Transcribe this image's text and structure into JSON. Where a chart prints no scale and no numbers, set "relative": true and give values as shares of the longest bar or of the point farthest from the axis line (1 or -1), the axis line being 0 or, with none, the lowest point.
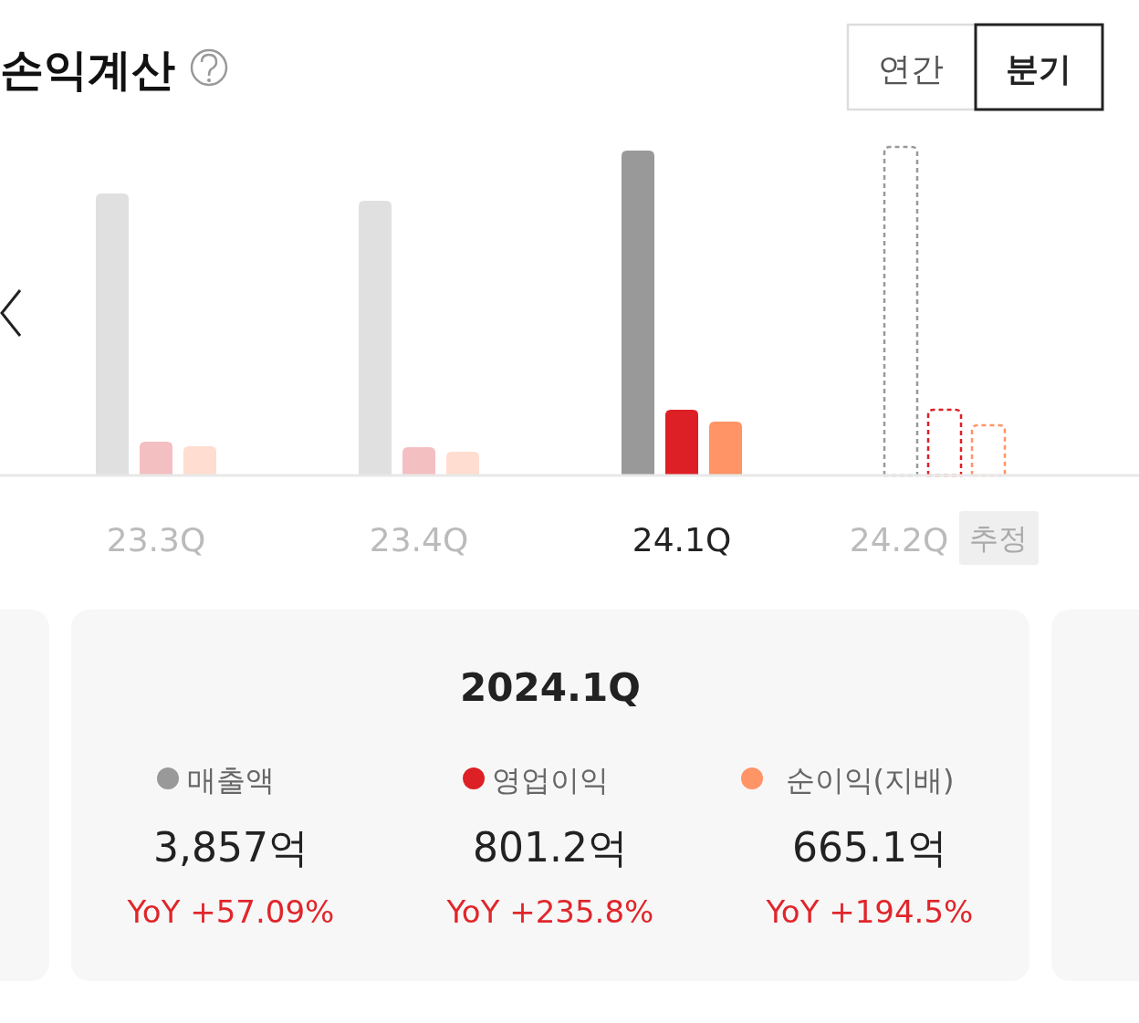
{
  "chart_data": {
    "type": "bar",
    "title": "손익계산",
    "relative": true,
    "categories": [
      "23.3Q",
      "23.4Q",
      "24.1Q",
      "24.2Q"
    ],
    "series": [
      {
        "name": "매출액",
        "color": "#999999",
        "colors": [
          "#e0e0e0",
          "#e0e0e0",
          "#999999",
          "#999999"
        ],
        "values": [
          0.858,
          0.836,
          0.989,
          1
        ]
      },
      {
        "name": "영업이익",
        "color": "#dd2025",
        "colors": [
          "#f4bfc1",
          "#f4bfc1",
          "#dd2025",
          "#dd2025"
        ],
        "values": [
          0.103,
          0.086,
          0.2,
          0.2
        ]
      },
      {
        "name": "순이익(지배)",
        "color": "#ff9466",
        "colors": [
          "#ffddd0",
          "#ffddd0",
          "#ff9466",
          "#ff9466"
        ],
        "values": [
          0.089,
          0.072,
          0.164,
          0.153
        ]
      }
    ],
    "annotations": [
      "연간",
      "분기",
      "2024.1Q",
      "3,857억",
      "801.2억",
      "665.1억",
      "YoY +57.09%",
      "YoY +235.8%",
      "YoY +194.5%",
      "추정"
    ],
    "legend": "bottom"
  }
}
